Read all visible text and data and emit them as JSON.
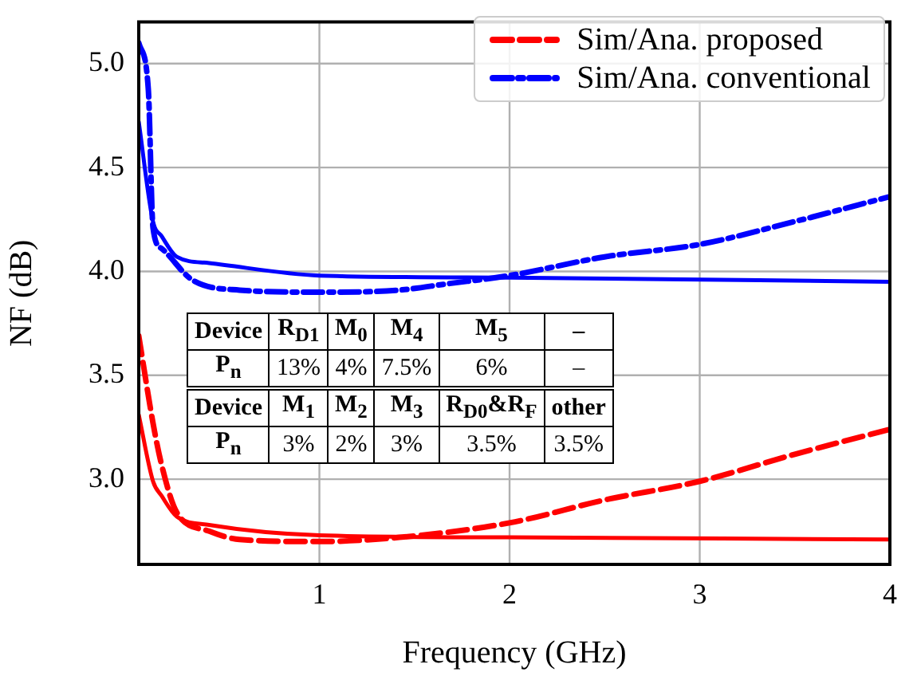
{
  "chart_data": {
    "type": "line",
    "xlabel": "Frequency (GHz)",
    "ylabel": "NF (dB)",
    "xlim": [
      0.05,
      4
    ],
    "ylim": [
      2.59,
      5.2
    ],
    "xticks": [
      1,
      2,
      3,
      4
    ],
    "yticks": [
      {
        "value": 3,
        "label": "3.0"
      },
      {
        "value": 3.5,
        "label": "3.5"
      },
      {
        "value": 4,
        "label": "4.0"
      },
      {
        "value": 4.5,
        "label": "4.5"
      },
      {
        "value": 5,
        "label": "5.0"
      }
    ],
    "grid": true,
    "legend": "top right",
    "marker": "none",
    "series": [
      {
        "name": "Sim/Ana. proposed",
        "color": "#ff0000",
        "line_style": "dashed",
        "x": [
          0.05,
          0.125,
          0.17,
          0.25,
          0.42,
          0.58,
          1,
          1.42,
          2,
          2.5,
          3,
          3.5,
          4
        ],
        "values": [
          3.69,
          3.27,
          3.07,
          2.84,
          2.75,
          2.71,
          2.7,
          2.72,
          2.79,
          2.9,
          2.99,
          3.12,
          3.24
        ]
      },
      {
        "name": "Sim/Ana. conventional",
        "color": "#0000ff",
        "line_style": "dashdot",
        "x": [
          0.05,
          0.1,
          0.125,
          0.17,
          0.33,
          0.58,
          1,
          1.42,
          1.67,
          2,
          2.5,
          3,
          3.5,
          4
        ],
        "values": [
          5.1,
          4.88,
          4.21,
          4.11,
          3.96,
          3.91,
          3.9,
          3.91,
          3.94,
          3.98,
          4.07,
          4.13,
          4.24,
          4.36
        ]
      },
      {
        "color": "#ff0000",
        "line_style": "solid",
        "x": [
          0.05,
          0.125,
          0.17,
          0.25,
          0.42,
          1,
          2,
          4
        ],
        "values": [
          3.31,
          2.99,
          2.92,
          2.82,
          2.78,
          2.73,
          2.72,
          2.71
        ]
      },
      {
        "color": "#0000ff",
        "line_style": "solid",
        "x": [
          0.05,
          0.125,
          0.17,
          0.25,
          0.42,
          1,
          2,
          4
        ],
        "values": [
          4.72,
          4.24,
          4.17,
          4.07,
          4.04,
          3.98,
          3.97,
          3.95
        ]
      }
    ],
    "annotations": [
      "Device",
      "R$_{D1}$",
      "M$_{0}$",
      "M$_{4}$",
      "M$_{5}$",
      "–",
      "P$_{n}$",
      "13%",
      "4%",
      "7.5%",
      "6%",
      "–",
      "Device",
      "M$_{1}$",
      "M$_{2}$",
      "M$_{3}$",
      "R$_{D0}$&R$_{F}$",
      "other",
      "P$_{n}$",
      "3%",
      "2%",
      "3%",
      "3.5%",
      "3.5%"
    ]
  }
}
